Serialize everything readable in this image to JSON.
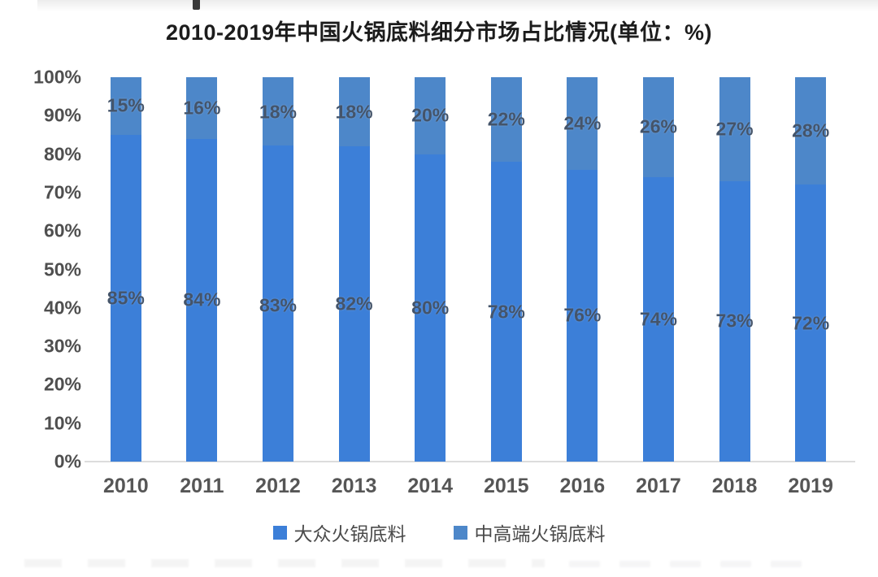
{
  "title": "2010-2019年中国火锅底料细分市场占比情况(单位：%)",
  "chart_data": {
    "type": "bar",
    "stacked": true,
    "title": "2010-2019年中国火锅底料细分市场占比情况(单位：%)",
    "categories": [
      "2010",
      "2011",
      "2012",
      "2013",
      "2014",
      "2015",
      "2016",
      "2017",
      "2018",
      "2019"
    ],
    "series": [
      {
        "name": "大众火锅底料",
        "color": "#3c7fd8",
        "values": [
          85,
          84,
          83,
          82,
          80,
          78,
          76,
          74,
          73,
          72
        ]
      },
      {
        "name": "中高端火锅底料",
        "color": "#4d87c9",
        "values": [
          15,
          16,
          18,
          18,
          20,
          22,
          24,
          26,
          27,
          28
        ]
      }
    ],
    "label_suffix": "%",
    "xlabel": "",
    "ylabel": "",
    "ylim": [
      0,
      100
    ],
    "yticks": [
      "0%",
      "10%",
      "20%",
      "30%",
      "40%",
      "50%",
      "60%",
      "70%",
      "80%",
      "90%",
      "100%"
    ],
    "grid": false,
    "legend_position": "bottom"
  },
  "colors": {
    "series_mass_market": "#3c7fd8",
    "series_mid_high_end": "#4d87c9",
    "data_label": "#44546a",
    "axis_text": "#4f4f4f",
    "baseline": "#dcdcdc",
    "title_text": "#1c1c1c"
  }
}
